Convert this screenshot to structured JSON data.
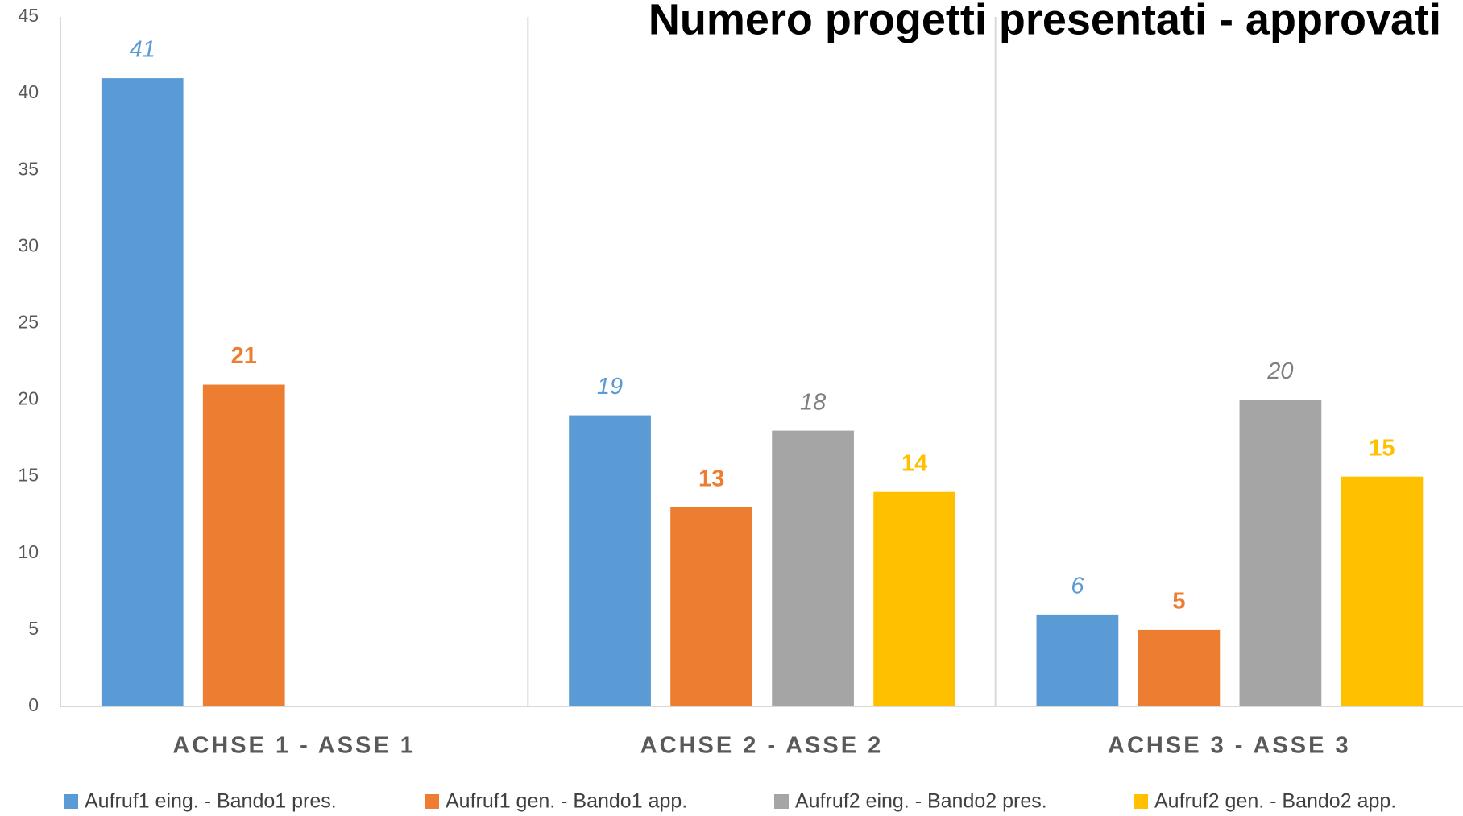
{
  "chart_data": {
    "type": "bar",
    "title": "Numero progetti presentati - approvati",
    "categories": [
      "ACHSE 1 - ASSE 1",
      "ACHSE 2 - ASSE 2",
      "ACHSE 3 - ASSE 3"
    ],
    "series": [
      {
        "name": "Aufruf1 eing. - Bando1 pres.",
        "color": "#5b9bd5",
        "values": [
          41,
          19,
          6
        ]
      },
      {
        "name": "Aufruf1 gen. - Bando1 app.",
        "color": "#ed7d31",
        "values": [
          21,
          13,
          5
        ]
      },
      {
        "name": "Aufruf2 eing. - Bando2 pres.",
        "color": "#a5a5a5",
        "values": [
          null,
          18,
          20
        ]
      },
      {
        "name": "Aufruf2 gen. - Bando2 app.",
        "color": "#ffc000",
        "values": [
          null,
          14,
          15
        ]
      }
    ],
    "ylim": [
      0,
      45
    ],
    "yticks": [
      0,
      5,
      10,
      15,
      20,
      25,
      30,
      35,
      40,
      45
    ],
    "grid": false,
    "legend": "bottom"
  }
}
